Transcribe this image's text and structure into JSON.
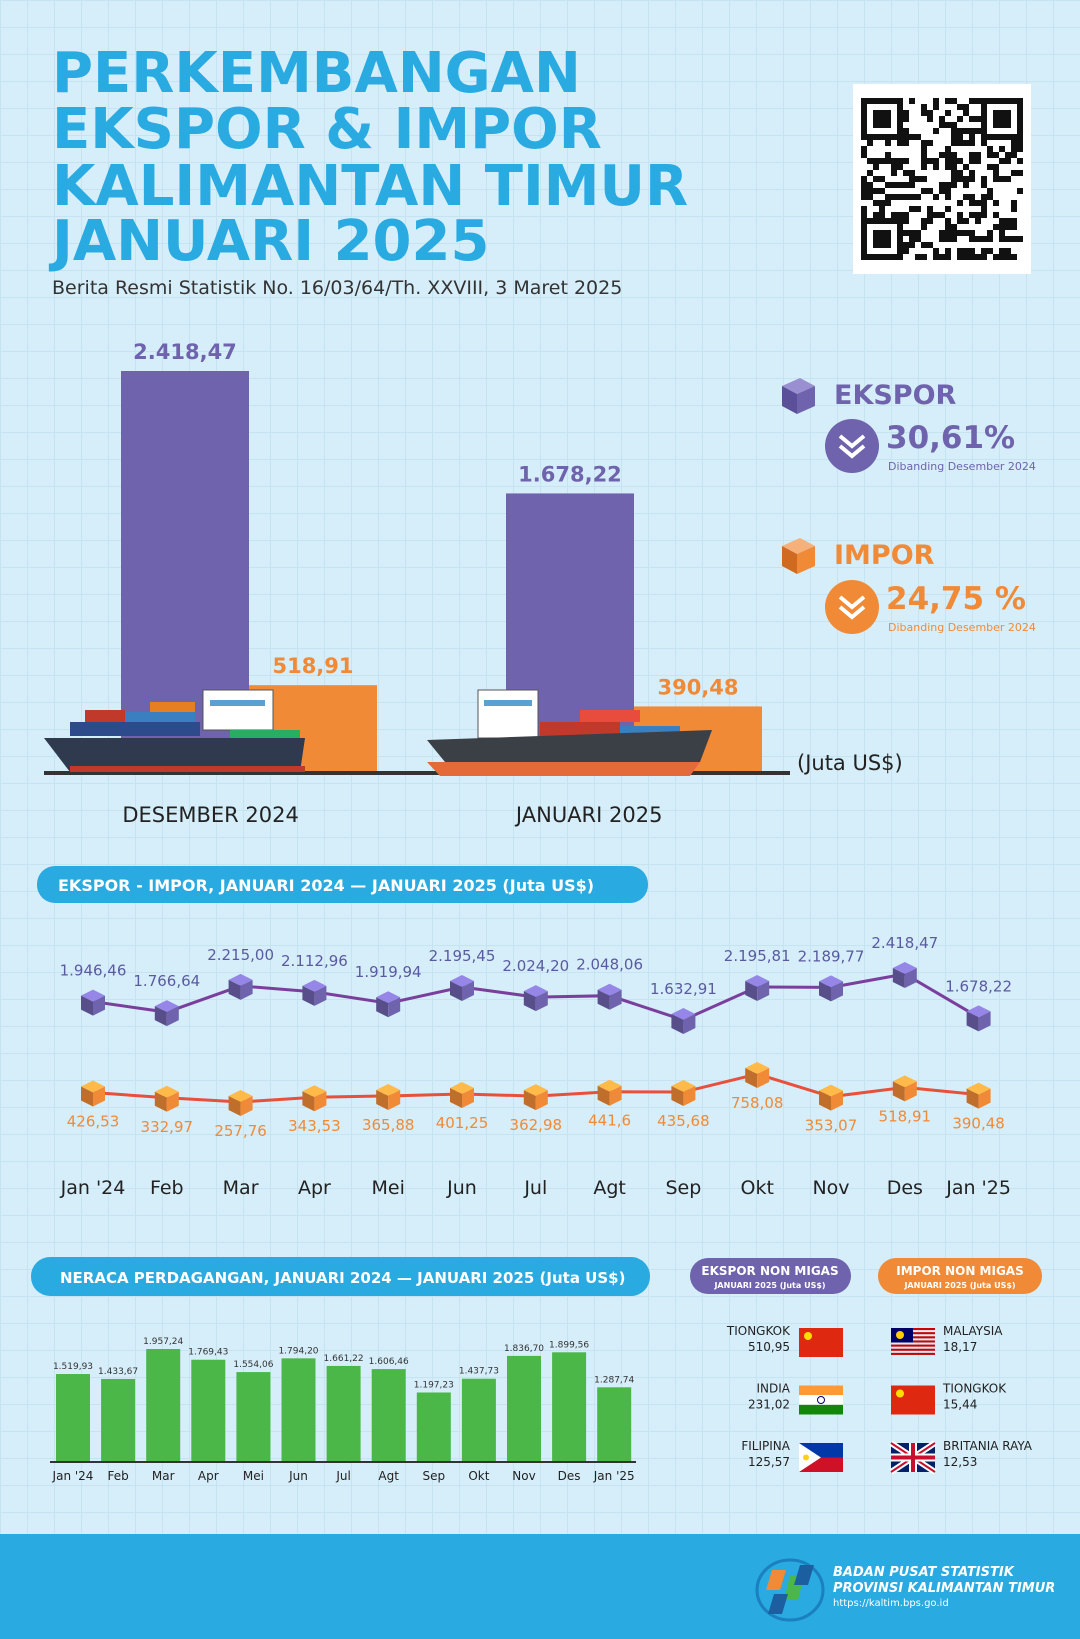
{
  "header": {
    "title": [
      "PERKEMBANGAN",
      "EKSPOR & IMPOR",
      "KALIMANTAN TIMUR",
      "JANUARI 2025"
    ],
    "subtitle": "Berita Resmi Statistik No. 16/03/64/Th. XXVIII, 3 Maret 2025"
  },
  "chart_data": [
    {
      "type": "bar",
      "categories": [
        "DESEMBER 2024",
        "JANUARI 2025"
      ],
      "unit": "(Juta US$)",
      "series": [
        {
          "name": "EKSPOR",
          "color": "#6e63ac",
          "values": [
            2418.47,
            1678.22
          ],
          "value_labels": [
            "2.418,47",
            "1.678,22"
          ]
        },
        {
          "name": "IMPOR",
          "color": "#f08a36",
          "values": [
            518.91,
            390.48
          ],
          "value_labels": [
            "518,91",
            "390,48"
          ]
        }
      ]
    },
    {
      "type": "line",
      "title": "EKSPOR - IMPOR, JANUARI 2024 — JANUARI 2025 (Juta US$)",
      "categories": [
        "Jan '24",
        "Feb",
        "Mar",
        "Apr",
        "Mei",
        "Jun",
        "Jul",
        "Agt",
        "Sep",
        "Okt",
        "Nov",
        "Des",
        "Jan '25"
      ],
      "series": [
        {
          "color": "#7a3f9d",
          "values": [
            1946.46,
            1766.64,
            2215.0,
            2112.96,
            1919.94,
            2195.45,
            2024.2,
            2048.06,
            1632.91,
            2195.81,
            2189.77,
            2418.47,
            1678.22
          ],
          "value_labels": [
            "1.946,46",
            "1.766,64",
            "2.215,00",
            "2.112,96",
            "1.919,94",
            "2.195,45",
            "2.024,20",
            "2.048,06",
            "1.632,91",
            "2.195,81",
            "2.189,77",
            "2.418,47",
            "1.678,22"
          ]
        },
        {
          "color": "#e8503a",
          "values": [
            426.53,
            332.97,
            257.76,
            343.53,
            365.88,
            401.25,
            362.98,
            441.6,
            435.68,
            758.08,
            353.07,
            518.91,
            390.48
          ],
          "value_labels": [
            "426,53",
            "332,97",
            "257,76",
            "343,53",
            "365,88",
            "401,25",
            "362,98",
            "441,6",
            "435,68",
            "758,08",
            "353,07",
            "518,91",
            "390,48"
          ]
        }
      ]
    },
    {
      "type": "bar",
      "title": "NERACA PERDAGANGAN, JANUARI 2024 — JANUARI 2025 (Juta US$)",
      "categories": [
        "Jan '24",
        "Feb",
        "Mar",
        "Apr",
        "Mei",
        "Jun",
        "Jul",
        "Agt",
        "Sep",
        "Okt",
        "Nov",
        "Des",
        "Jan '25"
      ],
      "color": "#4bb749",
      "values": [
        1519.93,
        1433.67,
        1957.24,
        1769.43,
        1554.06,
        1794.2,
        1661.22,
        1606.46,
        1197.23,
        1437.73,
        1836.7,
        1899.56,
        1287.74
      ],
      "value_labels": [
        "1.519,93",
        "1.433,67",
        "1.957,24",
        "1.769,43",
        "1.554,06",
        "1.794,20",
        "1.661,22",
        "1.606,46",
        "1.197,23",
        "1.437,73",
        "1.836,70",
        "1.899,56",
        "1.287,74"
      ]
    }
  ],
  "summary": [
    {
      "change": "30,61%",
      "note": "Dibanding Desember 2024"
    },
    {
      "change": "24,75 %",
      "note": "Dibanding Desember 2024"
    }
  ],
  "partners": {
    "export": {
      "title": "EKSPOR NON MIGAS",
      "subtitle": "JANUARI 2025 (Juta US$)",
      "items": [
        {
          "country": "TIONGKOK",
          "value": "510,95"
        },
        {
          "country": "INDIA",
          "value": "231,02"
        },
        {
          "country": "FILIPINA",
          "value": "125,57"
        }
      ]
    },
    "import": {
      "title": "IMPOR NON MIGAS",
      "subtitle": "JANUARI 2025 (Juta US$)",
      "items": [
        {
          "country": "MALAYSIA",
          "value": "18,17"
        },
        {
          "country": "TIONGKOK",
          "value": "15,44"
        },
        {
          "country": "BRITANIA RAYA",
          "value": "12,53"
        }
      ]
    }
  },
  "footer": {
    "org": [
      "BADAN PUSAT STATISTIK",
      "PROVINSI KALIMANTAN TIMUR"
    ],
    "url": "https://kaltim.bps.go.id"
  }
}
